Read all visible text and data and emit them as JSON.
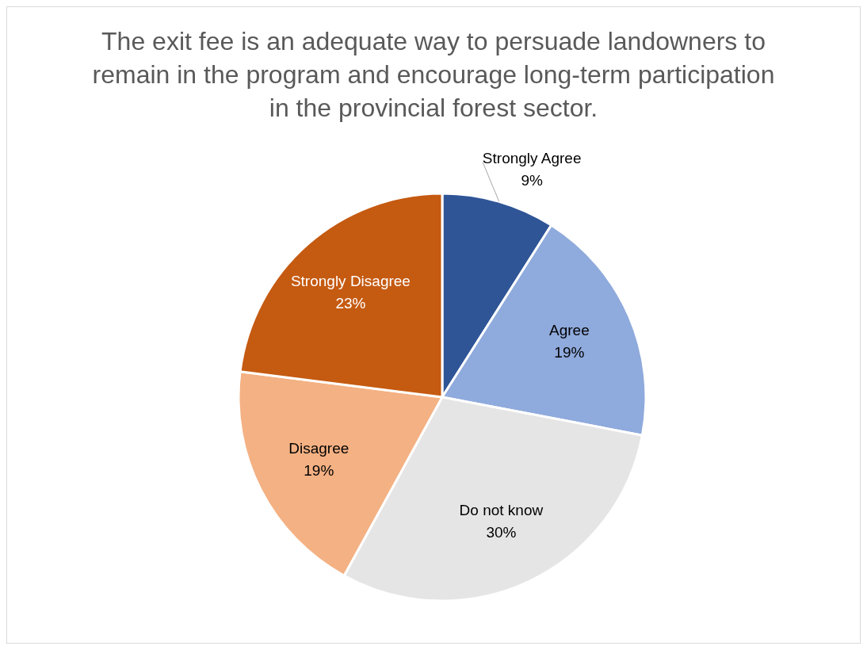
{
  "chart_data": {
    "type": "pie",
    "title": "The exit fee is an adequate way to persuade landowners to remain in the program and encourage long-term participation in the provincial forest sector.",
    "categories": [
      "Strongly Agree",
      "Agree",
      "Do not know",
      "Disagree",
      "Strongly Disagree"
    ],
    "values": [
      9,
      19,
      30,
      19,
      23
    ],
    "colors": [
      "#2f5597",
      "#8faadc",
      "#e5e5e5",
      "#f4b183",
      "#c55a11"
    ],
    "value_labels": [
      "9%",
      "19%",
      "30%",
      "19%",
      "23%"
    ],
    "legend": false
  }
}
